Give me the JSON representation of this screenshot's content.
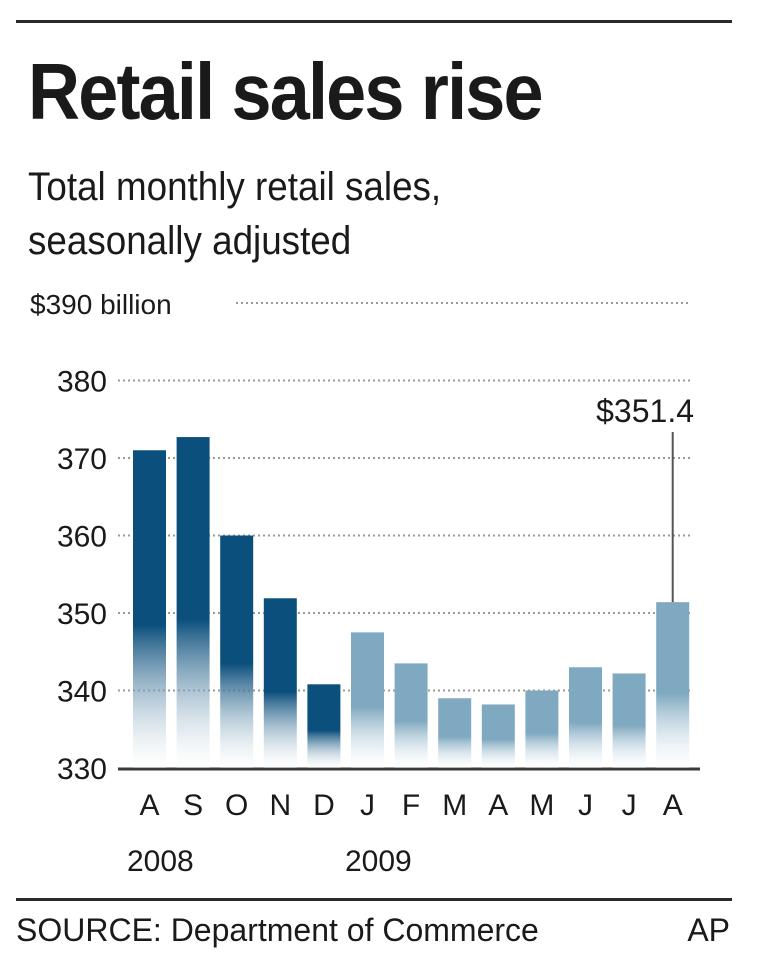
{
  "header": {
    "title": "Retail sales rise",
    "subtitle_lines": [
      "Total monthly retail sales,",
      "seasonally adjusted"
    ]
  },
  "chart_data": {
    "type": "bar",
    "ylabel": "$390 billion",
    "ylim": [
      330,
      390
    ],
    "yticks": [
      {
        "value": 390,
        "label": "$390 billion"
      },
      {
        "value": 380,
        "label": "380"
      },
      {
        "value": 370,
        "label": "370"
      },
      {
        "value": 360,
        "label": "360"
      },
      {
        "value": 350,
        "label": "350"
      },
      {
        "value": 340,
        "label": "340"
      },
      {
        "value": 330,
        "label": "330"
      }
    ],
    "grid": true,
    "categories": [
      "A",
      "S",
      "O",
      "N",
      "D",
      "J",
      "F",
      "M",
      "A",
      "M",
      "J",
      "J",
      "A"
    ],
    "years": [
      {
        "label": "2008",
        "start_index": 0
      },
      {
        "label": "2009",
        "start_index": 5
      }
    ],
    "values": [
      371.0,
      372.7,
      360.0,
      351.9,
      340.8,
      347.5,
      343.5,
      339.0,
      338.2,
      340.0,
      343.0,
      342.2,
      351.4
    ],
    "colors": {
      "2008": "#0b4f7c",
      "2009": "#7fa9c0"
    },
    "annotation": {
      "index": 12,
      "text": "$351.4"
    }
  },
  "footer": {
    "source": "SOURCE: Department of Commerce",
    "credit": "AP"
  }
}
